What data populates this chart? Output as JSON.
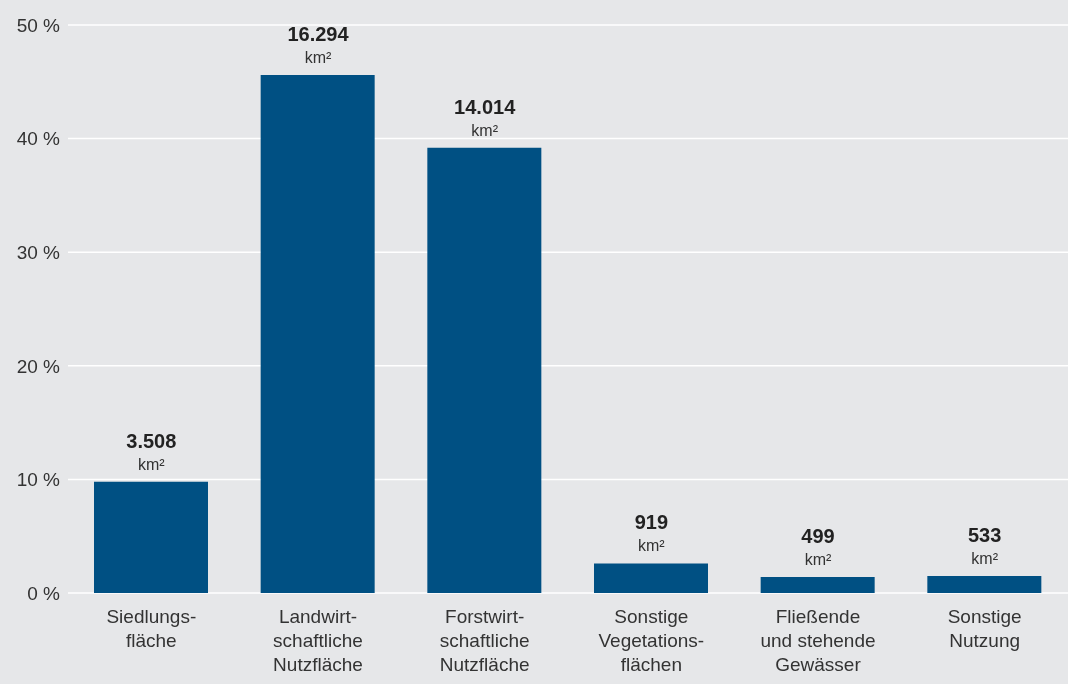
{
  "chart_data": {
    "type": "bar",
    "categories": [
      "Siedlungs-\nfläche",
      "Landwirt-\nschaftliche\nNutzfläche",
      "Forstwirt-\nschaftliche\nNutzfläche",
      "Sonstige\nVegetations-\nflächen",
      "Fließende\nund stehende\nGewässer",
      "Sonstige\nNutzung"
    ],
    "values": [
      9.8,
      45.6,
      39.2,
      2.6,
      1.4,
      1.5
    ],
    "annotations": [
      {
        "text": "3.508 km²",
        "x": "Siedlungs-\nfläche",
        "y": 9.8
      },
      {
        "text": "16.294 km²",
        "x": "Landwirt-\nschaftliche\nNutzfläche",
        "y": 45.6
      },
      {
        "text": "14.014 km²",
        "x": "Forstwirt-\nschaftliche\nNutzfläche",
        "y": 39.2
      },
      {
        "text": "919 km²",
        "x": "Sonstige\nVegetations-\nflächen",
        "y": 2.6
      },
      {
        "text": "499 km²",
        "x": "Fließende\nund stehende\nGewässer",
        "y": 1.4
      },
      {
        "text": "533 km²",
        "x": "Sonstige\nNutzung",
        "y": 1.5
      }
    ],
    "color": "#005083",
    "ylim": [
      0,
      50
    ],
    "yticks": [
      {
        "value": 0,
        "label": "0 %"
      },
      {
        "value": 10,
        "label": "10 %"
      },
      {
        "value": 20,
        "label": "20 %"
      },
      {
        "value": 30,
        "label": "30 %"
      },
      {
        "value": 40,
        "label": "40 %"
      },
      {
        "value": 50,
        "label": "50 %"
      }
    ],
    "grid": "y",
    "legend": false
  }
}
